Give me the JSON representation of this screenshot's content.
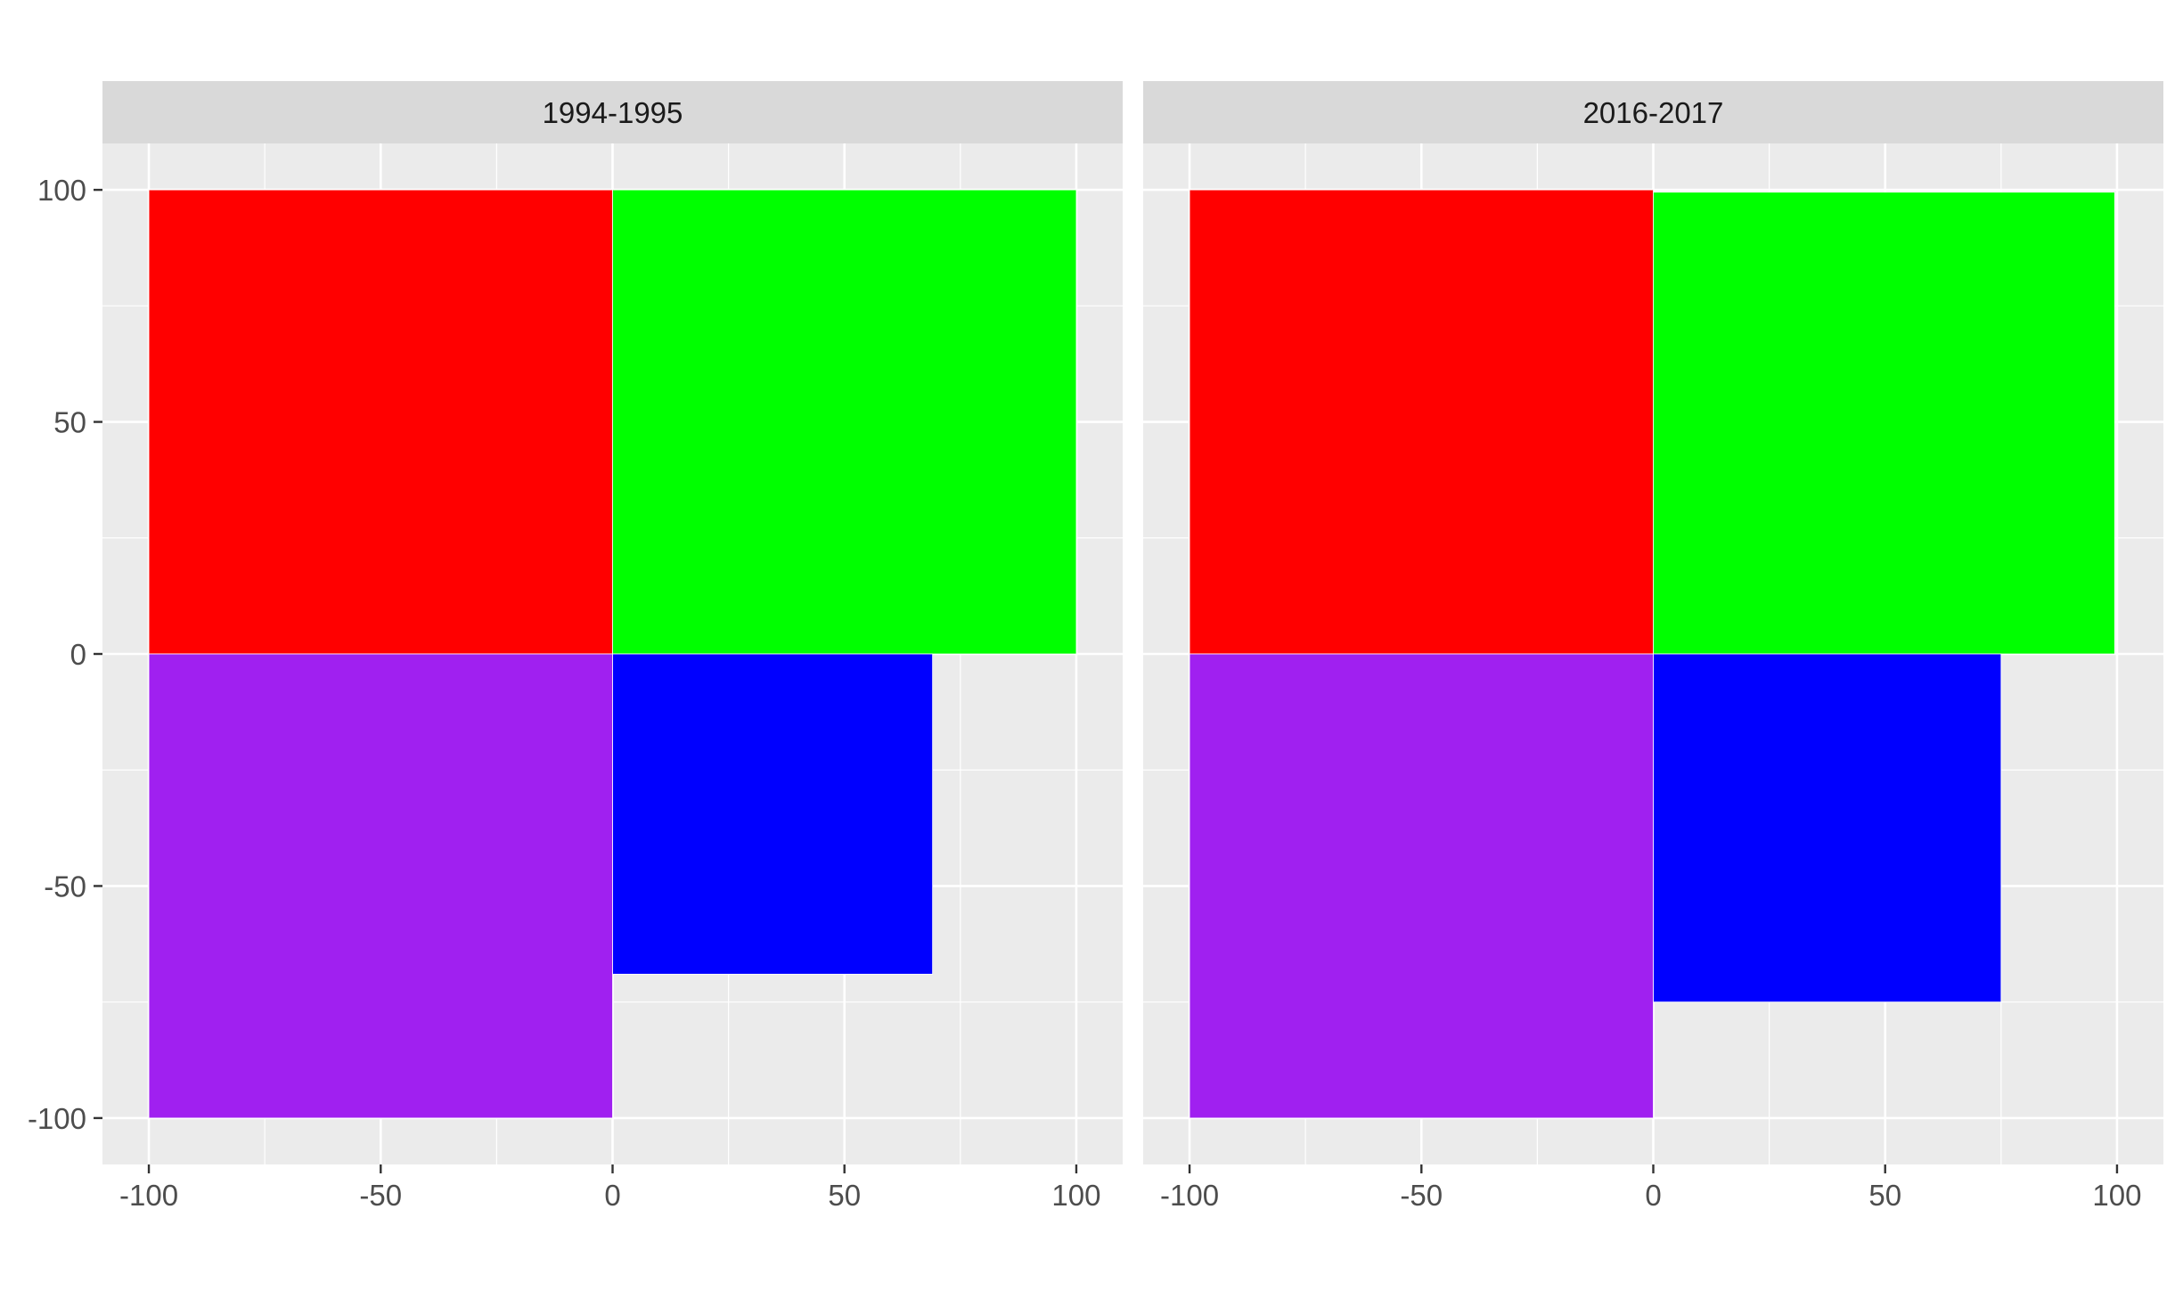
{
  "chart_data": {
    "type": "bar",
    "chart_kind": "faceted quadrant rectangles",
    "xlim": [
      -110,
      110
    ],
    "ylim": [
      -110,
      110
    ],
    "x_ticks": [
      -100,
      -50,
      0,
      50,
      100
    ],
    "y_ticks": [
      100,
      50,
      0,
      -50,
      -100
    ],
    "x_tick_labels": [
      "-100",
      "-50",
      "0",
      "50",
      "100"
    ],
    "y_tick_labels": [
      "100",
      "50",
      "0",
      "-50",
      "-100"
    ],
    "grid": true,
    "colors": {
      "top_left": "#ff0000",
      "top_right": "#00ff00",
      "bottom_right": "#0000ff",
      "bottom_left": "#a020f0",
      "panel_bg": "#ebebeb",
      "strip_bg": "#d9d9d9"
    },
    "facets": [
      {
        "strip_label": "1994-1995",
        "rects": [
          {
            "quadrant": "top_left",
            "xmin": -100,
            "xmax": 0,
            "ymin": 0,
            "ymax": 100
          },
          {
            "quadrant": "top_right",
            "xmin": 0,
            "xmax": 100,
            "ymin": 0,
            "ymax": 100
          },
          {
            "quadrant": "bottom_right",
            "xmin": 0,
            "xmax": 69,
            "ymin": -69,
            "ymax": 0
          },
          {
            "quadrant": "bottom_left",
            "xmin": -100,
            "xmax": 0,
            "ymin": -100,
            "ymax": 0
          }
        ]
      },
      {
        "strip_label": "2016-2017",
        "rects": [
          {
            "quadrant": "top_left",
            "xmin": -100,
            "xmax": 0,
            "ymin": 0,
            "ymax": 100
          },
          {
            "quadrant": "top_right",
            "xmin": 0,
            "xmax": 99.5,
            "ymin": 0,
            "ymax": 99.5
          },
          {
            "quadrant": "bottom_right",
            "xmin": 0,
            "xmax": 75,
            "ymin": -75,
            "ymax": 0
          },
          {
            "quadrant": "bottom_left",
            "xmin": -100,
            "xmax": 0,
            "ymin": -100,
            "ymax": 0
          }
        ]
      }
    ]
  }
}
